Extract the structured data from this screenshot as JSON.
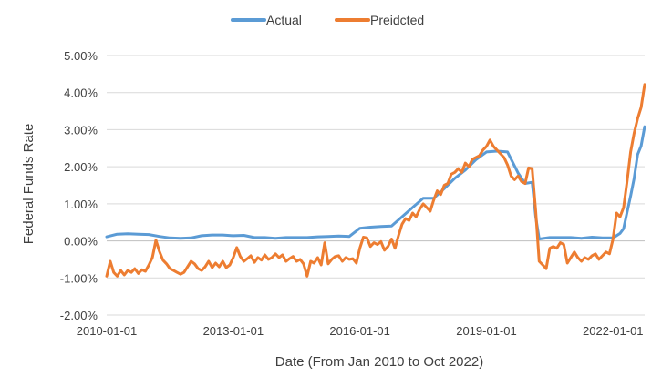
{
  "chart_data": {
    "type": "line",
    "xlabel": "Date (From Jan 2010 to Oct 2022)",
    "ylabel": "Federal Funds Rate",
    "x_tick_labels": [
      "2010-01-01",
      "2013-01-01",
      "2016-01-01",
      "2019-01-01",
      "2022-01-01"
    ],
    "y_tick_labels": [
      "-2.00%",
      "-1.00%",
      "0.00%",
      "1.00%",
      "2.00%",
      "3.00%",
      "4.00%",
      "5.00%"
    ],
    "y_ticks": [
      -2,
      -1,
      0,
      1,
      2,
      3,
      4,
      5
    ],
    "ylim": [
      -2,
      5
    ],
    "xlim": [
      "2010-01",
      "2022-10"
    ],
    "grid": "horizontal",
    "legend_position": "top",
    "series": [
      {
        "name": "Actual",
        "color": "#5b9bd5",
        "points": [
          [
            "2010-01",
            0.11
          ],
          [
            "2010-04",
            0.18
          ],
          [
            "2010-07",
            0.19
          ],
          [
            "2010-10",
            0.18
          ],
          [
            "2011-01",
            0.17
          ],
          [
            "2011-04",
            0.12
          ],
          [
            "2011-07",
            0.08
          ],
          [
            "2011-10",
            0.07
          ],
          [
            "2012-01",
            0.08
          ],
          [
            "2012-04",
            0.14
          ],
          [
            "2012-07",
            0.16
          ],
          [
            "2012-10",
            0.16
          ],
          [
            "2013-01",
            0.14
          ],
          [
            "2013-04",
            0.15
          ],
          [
            "2013-07",
            0.09
          ],
          [
            "2013-10",
            0.09
          ],
          [
            "2014-01",
            0.07
          ],
          [
            "2014-04",
            0.09
          ],
          [
            "2014-07",
            0.09
          ],
          [
            "2014-10",
            0.09
          ],
          [
            "2015-01",
            0.11
          ],
          [
            "2015-04",
            0.12
          ],
          [
            "2015-07",
            0.13
          ],
          [
            "2015-10",
            0.12
          ],
          [
            "2016-01",
            0.34
          ],
          [
            "2016-04",
            0.37
          ],
          [
            "2016-07",
            0.39
          ],
          [
            "2016-10",
            0.4
          ],
          [
            "2017-01",
            0.65
          ],
          [
            "2017-04",
            0.9
          ],
          [
            "2017-07",
            1.15
          ],
          [
            "2017-10",
            1.15
          ],
          [
            "2018-01",
            1.41
          ],
          [
            "2018-04",
            1.69
          ],
          [
            "2018-07",
            1.91
          ],
          [
            "2018-10",
            2.19
          ],
          [
            "2019-01",
            2.4
          ],
          [
            "2019-04",
            2.42
          ],
          [
            "2019-07",
            2.4
          ],
          [
            "2019-10",
            1.83
          ],
          [
            "2019-12",
            1.55
          ],
          [
            "2020-02",
            1.58
          ],
          [
            "2020-03",
            0.65
          ],
          [
            "2020-04",
            0.05
          ],
          [
            "2020-07",
            0.09
          ],
          [
            "2020-10",
            0.09
          ],
          [
            "2021-01",
            0.09
          ],
          [
            "2021-04",
            0.07
          ],
          [
            "2021-07",
            0.1
          ],
          [
            "2021-10",
            0.08
          ],
          [
            "2022-01",
            0.08
          ],
          [
            "2022-03",
            0.2
          ],
          [
            "2022-04",
            0.33
          ],
          [
            "2022-05",
            0.77
          ],
          [
            "2022-06",
            1.21
          ],
          [
            "2022-07",
            1.68
          ],
          [
            "2022-08",
            2.33
          ],
          [
            "2022-09",
            2.56
          ],
          [
            "2022-10",
            3.08
          ]
        ]
      },
      {
        "name": "Preidcted",
        "color": "#ed7d31",
        "points": [
          [
            "2010-01",
            -0.95
          ],
          [
            "2010-02",
            -0.55
          ],
          [
            "2010-03",
            -0.85
          ],
          [
            "2010-04",
            -0.95
          ],
          [
            "2010-05",
            -0.8
          ],
          [
            "2010-06",
            -0.92
          ],
          [
            "2010-07",
            -0.8
          ],
          [
            "2010-08",
            -0.85
          ],
          [
            "2010-09",
            -0.75
          ],
          [
            "2010-10",
            -0.88
          ],
          [
            "2010-11",
            -0.78
          ],
          [
            "2010-12",
            -0.82
          ],
          [
            "2011-01",
            -0.65
          ],
          [
            "2011-02",
            -0.45
          ],
          [
            "2011-03",
            0.02
          ],
          [
            "2011-04",
            -0.28
          ],
          [
            "2011-05",
            -0.52
          ],
          [
            "2011-06",
            -0.62
          ],
          [
            "2011-07",
            -0.75
          ],
          [
            "2011-08",
            -0.8
          ],
          [
            "2011-09",
            -0.85
          ],
          [
            "2011-10",
            -0.9
          ],
          [
            "2011-11",
            -0.85
          ],
          [
            "2011-12",
            -0.7
          ],
          [
            "2012-01",
            -0.55
          ],
          [
            "2012-02",
            -0.62
          ],
          [
            "2012-03",
            -0.75
          ],
          [
            "2012-04",
            -0.8
          ],
          [
            "2012-05",
            -0.7
          ],
          [
            "2012-06",
            -0.55
          ],
          [
            "2012-07",
            -0.72
          ],
          [
            "2012-08",
            -0.6
          ],
          [
            "2012-09",
            -0.7
          ],
          [
            "2012-10",
            -0.55
          ],
          [
            "2012-11",
            -0.72
          ],
          [
            "2012-12",
            -0.65
          ],
          [
            "2013-01",
            -0.45
          ],
          [
            "2013-02",
            -0.18
          ],
          [
            "2013-03",
            -0.42
          ],
          [
            "2013-04",
            -0.55
          ],
          [
            "2013-05",
            -0.48
          ],
          [
            "2013-06",
            -0.4
          ],
          [
            "2013-07",
            -0.58
          ],
          [
            "2013-08",
            -0.45
          ],
          [
            "2013-09",
            -0.52
          ],
          [
            "2013-10",
            -0.38
          ],
          [
            "2013-11",
            -0.5
          ],
          [
            "2013-12",
            -0.45
          ],
          [
            "2014-01",
            -0.35
          ],
          [
            "2014-02",
            -0.45
          ],
          [
            "2014-03",
            -0.38
          ],
          [
            "2014-04",
            -0.55
          ],
          [
            "2014-05",
            -0.48
          ],
          [
            "2014-06",
            -0.42
          ],
          [
            "2014-07",
            -0.55
          ],
          [
            "2014-08",
            -0.5
          ],
          [
            "2014-09",
            -0.62
          ],
          [
            "2014-10",
            -0.95
          ],
          [
            "2014-11",
            -0.55
          ],
          [
            "2014-12",
            -0.6
          ],
          [
            "2015-01",
            -0.45
          ],
          [
            "2015-02",
            -0.65
          ],
          [
            "2015-03",
            -0.05
          ],
          [
            "2015-04",
            -0.62
          ],
          [
            "2015-05",
            -0.5
          ],
          [
            "2015-06",
            -0.42
          ],
          [
            "2015-07",
            -0.4
          ],
          [
            "2015-08",
            -0.55
          ],
          [
            "2015-09",
            -0.45
          ],
          [
            "2015-10",
            -0.5
          ],
          [
            "2015-11",
            -0.48
          ],
          [
            "2015-12",
            -0.6
          ],
          [
            "2016-01",
            -0.2
          ],
          [
            "2016-02",
            0.1
          ],
          [
            "2016-03",
            0.08
          ],
          [
            "2016-04",
            -0.15
          ],
          [
            "2016-05",
            -0.05
          ],
          [
            "2016-06",
            -0.1
          ],
          [
            "2016-07",
            -0.02
          ],
          [
            "2016-08",
            -0.25
          ],
          [
            "2016-09",
            -0.15
          ],
          [
            "2016-10",
            0.05
          ],
          [
            "2016-11",
            -0.2
          ],
          [
            "2016-12",
            0.15
          ],
          [
            "2017-01",
            0.45
          ],
          [
            "2017-02",
            0.6
          ],
          [
            "2017-03",
            0.55
          ],
          [
            "2017-04",
            0.75
          ],
          [
            "2017-05",
            0.65
          ],
          [
            "2017-06",
            0.85
          ],
          [
            "2017-07",
            1.0
          ],
          [
            "2017-08",
            0.9
          ],
          [
            "2017-09",
            0.8
          ],
          [
            "2017-10",
            1.1
          ],
          [
            "2017-11",
            1.35
          ],
          [
            "2017-12",
            1.25
          ],
          [
            "2018-01",
            1.5
          ],
          [
            "2018-02",
            1.55
          ],
          [
            "2018-03",
            1.8
          ],
          [
            "2018-04",
            1.85
          ],
          [
            "2018-05",
            1.95
          ],
          [
            "2018-06",
            1.85
          ],
          [
            "2018-07",
            2.1
          ],
          [
            "2018-08",
            2.0
          ],
          [
            "2018-09",
            2.2
          ],
          [
            "2018-10",
            2.25
          ],
          [
            "2018-11",
            2.3
          ],
          [
            "2018-12",
            2.45
          ],
          [
            "2019-01",
            2.55
          ],
          [
            "2019-02",
            2.72
          ],
          [
            "2019-03",
            2.55
          ],
          [
            "2019-04",
            2.45
          ],
          [
            "2019-05",
            2.35
          ],
          [
            "2019-06",
            2.25
          ],
          [
            "2019-07",
            2.05
          ],
          [
            "2019-08",
            1.75
          ],
          [
            "2019-09",
            1.65
          ],
          [
            "2019-10",
            1.75
          ],
          [
            "2019-11",
            1.6
          ],
          [
            "2019-12",
            1.55
          ],
          [
            "2020-01",
            1.97
          ],
          [
            "2020-02",
            1.95
          ],
          [
            "2020-03",
            0.8
          ],
          [
            "2020-04",
            -0.55
          ],
          [
            "2020-05",
            -0.65
          ],
          [
            "2020-06",
            -0.75
          ],
          [
            "2020-07",
            -0.2
          ],
          [
            "2020-08",
            -0.15
          ],
          [
            "2020-09",
            -0.2
          ],
          [
            "2020-10",
            -0.05
          ],
          [
            "2020-11",
            -0.1
          ],
          [
            "2020-12",
            -0.6
          ],
          [
            "2021-01",
            -0.45
          ],
          [
            "2021-02",
            -0.3
          ],
          [
            "2021-03",
            -0.45
          ],
          [
            "2021-04",
            -0.55
          ],
          [
            "2021-05",
            -0.45
          ],
          [
            "2021-06",
            -0.5
          ],
          [
            "2021-07",
            -0.4
          ],
          [
            "2021-08",
            -0.35
          ],
          [
            "2021-09",
            -0.5
          ],
          [
            "2021-10",
            -0.4
          ],
          [
            "2021-11",
            -0.3
          ],
          [
            "2021-12",
            -0.35
          ],
          [
            "2022-01",
            0.05
          ],
          [
            "2022-02",
            0.75
          ],
          [
            "2022-03",
            0.65
          ],
          [
            "2022-04",
            0.9
          ],
          [
            "2022-05",
            1.6
          ],
          [
            "2022-06",
            2.4
          ],
          [
            "2022-07",
            2.9
          ],
          [
            "2022-08",
            3.3
          ],
          [
            "2022-09",
            3.6
          ],
          [
            "2022-10",
            4.22
          ]
        ]
      }
    ]
  }
}
